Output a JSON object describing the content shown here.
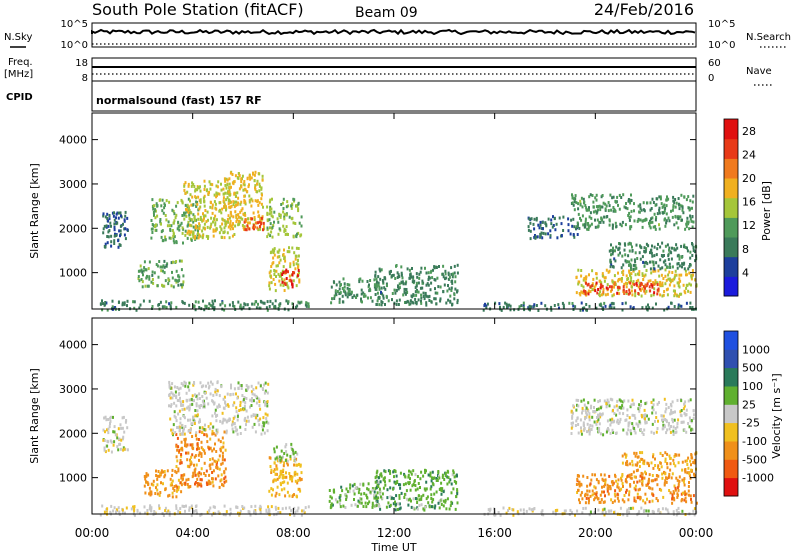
{
  "header": {
    "title": "South Pole Station (fitACF)",
    "beam": "Beam 09",
    "date": "24/Feb/2016"
  },
  "summary": {
    "nsky_label": "N.Sky",
    "nsky_ticks": [
      "10^5",
      "10^0"
    ],
    "nsearch_label": "N.Search",
    "nsearch_ticks": [
      "10^5",
      "10^0"
    ],
    "freq_label": "Freq.",
    "freq_unit": "[MHz]",
    "freq_ticks": [
      "18",
      "8"
    ],
    "nave_label": "Nave",
    "nave_ticks": [
      "60",
      "0"
    ],
    "cpid_label": "CPID",
    "cpid_text": "normalsound (fast) 157 RF"
  },
  "colors": {
    "power_scale": [
      "#1b1bdc",
      "#1d3f9c",
      "#3a7a5a",
      "#4f9a5a",
      "#a5c63a",
      "#f0b020",
      "#f07a1e",
      "#e83a18",
      "#e01010"
    ],
    "velocity_scale": [
      "#e01010",
      "#f05a12",
      "#f0901a",
      "#f0c020",
      "#c8c8c8",
      "#60b030",
      "#2a7a5a",
      "#3050b0",
      "#2050e0"
    ]
  },
  "chart_data": [
    {
      "type": "heatmap",
      "name": "Power",
      "ylabel": "Slant Range [km]",
      "xlabel": "Time UT",
      "ylim": [
        180,
        4600
      ],
      "xlim_hours": [
        0,
        24
      ],
      "y_ticks": [
        "1000",
        "2000",
        "3000",
        "4000"
      ],
      "x_ticks": [
        "00:00",
        "04:00",
        "08:00",
        "12:00",
        "16:00",
        "20:00",
        "00:00"
      ],
      "colorbar_label": "Power [dB]",
      "colorbar_ticks": [
        "4",
        "8",
        "12",
        "16",
        "20",
        "24",
        "28"
      ],
      "clim": [
        0,
        30
      ],
      "regions": [
        {
          "t0": 0.3,
          "t1": 8.6,
          "r0": 180,
          "r1": 400,
          "value": 9
        },
        {
          "t0": 0.4,
          "t1": 1.4,
          "r0": 1600,
          "r1": 2400,
          "value": 7
        },
        {
          "t0": 1.8,
          "t1": 3.6,
          "r0": 700,
          "r1": 1300,
          "value": 12
        },
        {
          "t0": 2.3,
          "t1": 4.3,
          "r0": 1700,
          "r1": 2700,
          "value": 13
        },
        {
          "t0": 3.6,
          "t1": 5.7,
          "r0": 1800,
          "r1": 3100,
          "value": 16
        },
        {
          "t0": 5.2,
          "t1": 6.8,
          "r0": 2000,
          "r1": 3300,
          "value": 17
        },
        {
          "t0": 6.0,
          "t1": 6.8,
          "r0": 2000,
          "r1": 2300,
          "value": 24
        },
        {
          "t0": 7.0,
          "t1": 8.2,
          "r0": 600,
          "r1": 1600,
          "value": 16
        },
        {
          "t0": 7.5,
          "t1": 8.2,
          "r0": 700,
          "r1": 1100,
          "value": 27
        },
        {
          "t0": 6.9,
          "t1": 8.3,
          "r0": 1800,
          "r1": 2700,
          "value": 14
        },
        {
          "t0": 9.4,
          "t1": 11.5,
          "r0": 350,
          "r1": 900,
          "value": 10
        },
        {
          "t0": 11.2,
          "t1": 14.5,
          "r0": 300,
          "r1": 1200,
          "value": 9
        },
        {
          "t0": 17.3,
          "t1": 19.3,
          "r0": 1800,
          "r1": 2300,
          "value": 7
        },
        {
          "t0": 19.0,
          "t1": 23.9,
          "r0": 2000,
          "r1": 2800,
          "value": 11
        },
        {
          "t0": 19.2,
          "t1": 24.0,
          "r0": 500,
          "r1": 1100,
          "value": 17
        },
        {
          "t0": 19.5,
          "t1": 22.5,
          "r0": 550,
          "r1": 800,
          "value": 25
        },
        {
          "t0": 20.5,
          "t1": 24.0,
          "r0": 1100,
          "r1": 1700,
          "value": 9
        },
        {
          "t0": 15.5,
          "t1": 24.0,
          "r0": 180,
          "r1": 350,
          "value": 8
        }
      ]
    },
    {
      "type": "heatmap",
      "name": "Velocity",
      "ylabel": "Slant Range [km]",
      "xlabel": "Time UT",
      "ylim": [
        180,
        4600
      ],
      "xlim_hours": [
        0,
        24
      ],
      "y_ticks": [
        "1000",
        "2000",
        "3000",
        "4000"
      ],
      "x_ticks": [
        "00:00",
        "04:00",
        "08:00",
        "12:00",
        "16:00",
        "20:00",
        "00:00"
      ],
      "colorbar_label": "Velocity [m s⁻¹]",
      "colorbar_ticks": [
        "-1000",
        "-500",
        "-100",
        "-25",
        "25",
        "100",
        "500",
        "1000"
      ],
      "clim": [
        -1000,
        1000
      ],
      "regions": [
        {
          "t0": 0.3,
          "t1": 8.6,
          "r0": 180,
          "r1": 400,
          "value": -50
        },
        {
          "t0": 0.4,
          "t1": 1.4,
          "r0": 1600,
          "r1": 2400,
          "value": 0
        },
        {
          "t0": 2.0,
          "t1": 3.6,
          "r0": 600,
          "r1": 1200,
          "value": -400
        },
        {
          "t0": 3.3,
          "t1": 5.3,
          "r0": 800,
          "r1": 2100,
          "value": -450
        },
        {
          "t0": 3.0,
          "t1": 7.0,
          "r0": 2000,
          "r1": 3200,
          "value": 0
        },
        {
          "t0": 7.0,
          "t1": 8.3,
          "r0": 600,
          "r1": 1500,
          "value": -300
        },
        {
          "t0": 7.2,
          "t1": 8.2,
          "r0": 1400,
          "r1": 1800,
          "value": 150
        },
        {
          "t0": 9.4,
          "t1": 11.5,
          "r0": 350,
          "r1": 900,
          "value": 200
        },
        {
          "t0": 11.2,
          "t1": 14.5,
          "r0": 300,
          "r1": 1200,
          "value": 250
        },
        {
          "t0": 19.0,
          "t1": 23.9,
          "r0": 2000,
          "r1": 2800,
          "value": 0
        },
        {
          "t0": 19.2,
          "t1": 24.0,
          "r0": 450,
          "r1": 1100,
          "value": -450
        },
        {
          "t0": 21.0,
          "t1": 24.0,
          "r0": 1100,
          "r1": 1600,
          "value": -350
        },
        {
          "t0": 15.5,
          "t1": 24.0,
          "r0": 180,
          "r1": 350,
          "value": -30
        }
      ]
    }
  ]
}
